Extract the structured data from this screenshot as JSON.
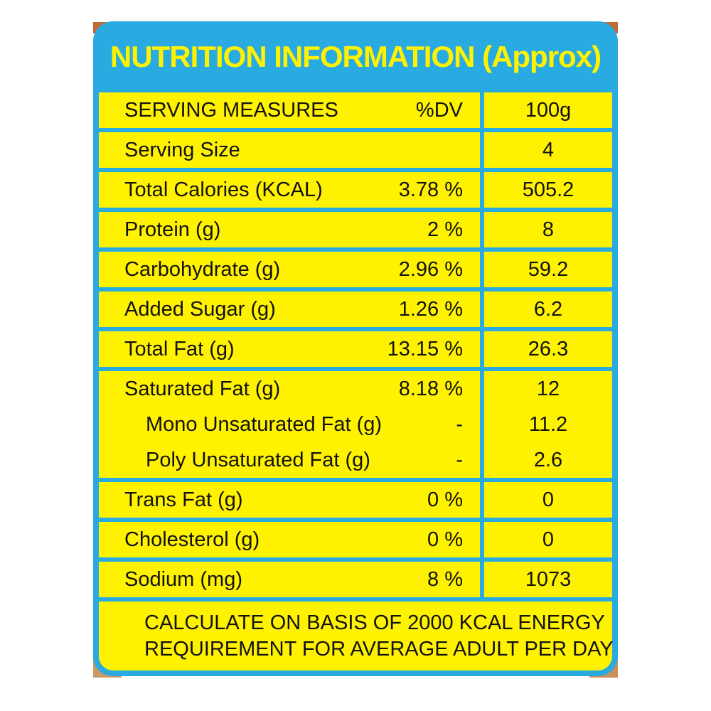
{
  "colors": {
    "card_blue": "#29ABE2",
    "cell_yellow": "#FFF200",
    "text": "#121212",
    "title_yellow": "#FFF200",
    "corner_bleed_orange": "#C5813F"
  },
  "header": {
    "title": "NUTRITION INFORMATION (Approx)"
  },
  "table": {
    "rows": [
      {
        "header": true,
        "label": "SERVING MEASURES",
        "dv": "%DV",
        "amount": "100g"
      },
      {
        "label": "Serving Size",
        "dv": "",
        "amount": "4"
      },
      {
        "label": "Total Calories (KCAL)",
        "dv": "3.78 %",
        "amount": "505.2"
      },
      {
        "label": "Protein (g)",
        "dv": "2 %",
        "amount": "8"
      },
      {
        "label": "Carbohydrate (g)",
        "dv": "2.96 %",
        "amount": "59.2"
      },
      {
        "label": "Added Sugar (g)",
        "dv": "1.26 %",
        "amount": "6.2"
      },
      {
        "label": "Total Fat (g)",
        "dv": "13.15 %",
        "amount": "26.3"
      },
      {
        "lines": [
          {
            "label": "Saturated Fat (g)",
            "dv": "8.18 %",
            "amount": "12",
            "indent": false
          },
          {
            "label": "Mono Unsaturated Fat (g)",
            "dv": "-",
            "amount": "11.2",
            "indent": true
          },
          {
            "label": "Poly Unsaturated Fat (g)",
            "dv": "-",
            "amount": "2.6",
            "indent": true
          }
        ]
      },
      {
        "label": "Trans Fat (g)",
        "dv": "0 %",
        "amount": "0"
      },
      {
        "label": "Cholesterol (g)",
        "dv": "0 %",
        "amount": "0"
      },
      {
        "label": "Sodium (mg)",
        "dv": "8 %",
        "amount": "1073"
      }
    ],
    "footer_lines": [
      "CALCULATE ON BASIS OF 2000 KCAL ENERGY",
      "REQUIREMENT FOR AVERAGE ADULT PER DAY"
    ]
  }
}
